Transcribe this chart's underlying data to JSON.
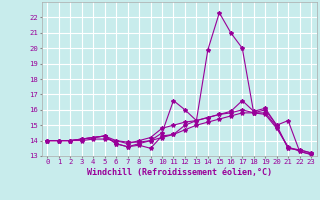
{
  "xlabel": "Windchill (Refroidissement éolien,°C)",
  "background_color": "#c8ecec",
  "grid_color": "#ffffff",
  "line_color": "#990099",
  "x": [
    0,
    1,
    2,
    3,
    4,
    5,
    6,
    7,
    8,
    9,
    10,
    11,
    12,
    13,
    14,
    15,
    16,
    17,
    18,
    19,
    20,
    21,
    22,
    23
  ],
  "series1": [
    14.0,
    14.0,
    14.0,
    14.1,
    14.2,
    14.3,
    13.8,
    13.6,
    13.7,
    13.5,
    14.3,
    14.4,
    15.0,
    15.3,
    19.9,
    22.3,
    21.0,
    20.0,
    15.8,
    16.0,
    15.0,
    15.3,
    13.3,
    13.1
  ],
  "series2": [
    14.0,
    14.0,
    14.0,
    14.1,
    14.2,
    14.3,
    13.8,
    13.6,
    13.8,
    14.0,
    14.5,
    16.6,
    16.0,
    15.3,
    15.5,
    15.7,
    15.9,
    16.6,
    15.9,
    16.1,
    15.0,
    13.5,
    13.4,
    13.2
  ],
  "series3": [
    14.0,
    14.0,
    14.0,
    14.1,
    14.2,
    14.3,
    14.0,
    13.8,
    14.0,
    14.2,
    14.8,
    15.0,
    15.2,
    15.3,
    15.5,
    15.7,
    15.8,
    16.0,
    15.8,
    15.8,
    14.9,
    13.5,
    13.4,
    13.2
  ],
  "series4": [
    14.0,
    14.0,
    14.0,
    14.0,
    14.1,
    14.1,
    14.0,
    13.9,
    13.9,
    14.0,
    14.2,
    14.4,
    14.7,
    15.0,
    15.2,
    15.4,
    15.6,
    15.8,
    15.8,
    15.7,
    14.8,
    13.6,
    13.3,
    13.1
  ],
  "ylim": [
    13,
    23
  ],
  "xlim": [
    -0.5,
    23.5
  ],
  "yticks": [
    13,
    14,
    15,
    16,
    17,
    18,
    19,
    20,
    21,
    22
  ],
  "xticks": [
    0,
    1,
    2,
    3,
    4,
    5,
    6,
    7,
    8,
    9,
    10,
    11,
    12,
    13,
    14,
    15,
    16,
    17,
    18,
    19,
    20,
    21,
    22,
    23
  ],
  "tick_fontsize": 5.2,
  "xlabel_fontsize": 6.0,
  "marker": "*",
  "markersize": 3,
  "linewidth": 0.8
}
